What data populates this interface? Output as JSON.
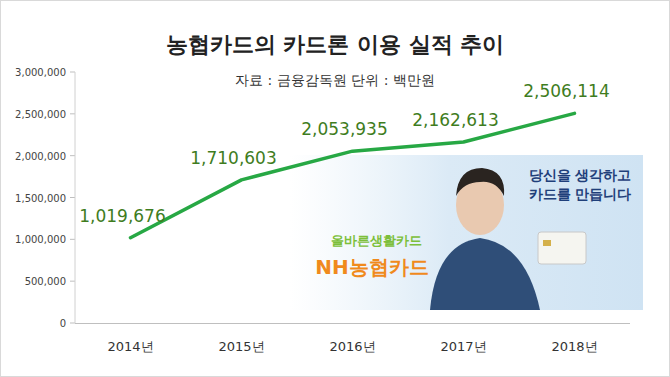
{
  "chart_data": {
    "type": "line",
    "title": "농협카드의 카드론 이용 실적 추이",
    "subtitle": "자료 : 금융감독원 단위 : 백만원",
    "categories": [
      "2014년",
      "2015년",
      "2016년",
      "2017년",
      "2018년"
    ],
    "values": [
      1019676,
      1710603,
      2053935,
      2162613,
      2506114
    ],
    "value_labels": [
      "1,019,676",
      "1,710,603",
      "2,053,935",
      "2,162,613",
      "2,506,114"
    ],
    "data_labels": true,
    "color": "#27a844",
    "ylim": [
      0,
      3000000
    ],
    "yticks": [
      0,
      {
        "value": 500000,
        "label": "500,000"
      },
      {
        "value": 1000000,
        "label": "1,000,000"
      },
      {
        "value": 1500000,
        "label": "1,500,000"
      },
      {
        "value": 2000000,
        "label": "2,000,000"
      },
      {
        "value": 2500000,
        "label": "2,500,000"
      },
      {
        "value": 3000000,
        "label": "3,000,000"
      }
    ],
    "grid": false,
    "annotations": [
      "당신을 생각하고",
      "카드를 만듭니다",
      "올바른생활카드",
      "NH농협카드"
    ]
  }
}
